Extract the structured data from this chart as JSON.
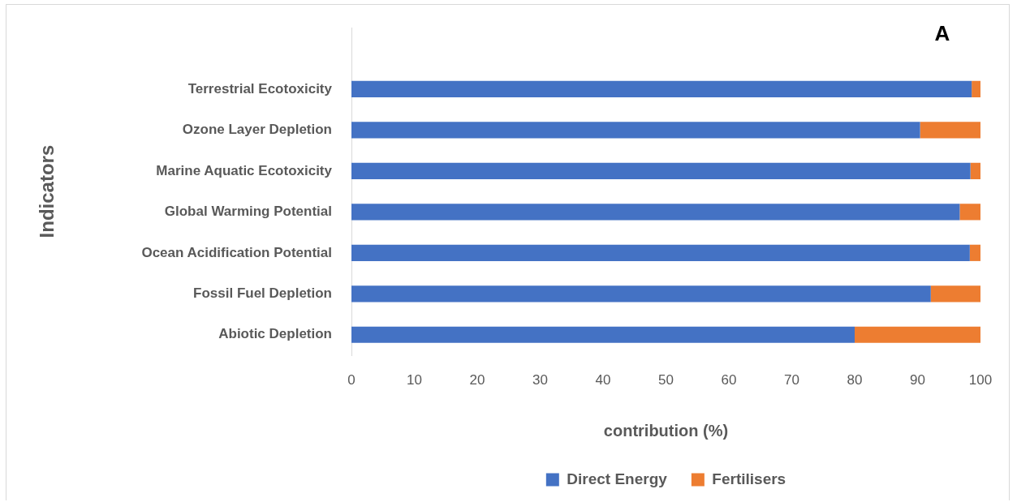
{
  "chart_data": {
    "type": "bar",
    "orientation": "horizontal",
    "stacked": true,
    "categories": [
      null,
      "Terrestrial Ecotoxicity",
      "Ozone Layer Depletion",
      "Marine Aquatic Ecotoxicity",
      "Global Warming Potential",
      "Ocean Acidification Potential",
      "Fossil Fuel Depletion",
      "Abiotic Depletion"
    ],
    "series": [
      {
        "name": "Direct Energy",
        "color": "#4472c4",
        "values": [
          null,
          98.6,
          90.4,
          98.4,
          96.7,
          98.3,
          92.1,
          80
        ]
      },
      {
        "name": "Fertilisers",
        "color": "#ed7d31",
        "values": [
          null,
          1.4,
          9.6,
          1.6,
          3.3,
          1.7,
          7.9,
          20
        ]
      }
    ],
    "xlabel": "contribution (%)",
    "ylabel": "Indicators",
    "xlim": [
      0,
      100
    ],
    "xticks": [
      0,
      10,
      20,
      30,
      40,
      50,
      60,
      70,
      80,
      90,
      100
    ],
    "legend": "bottom",
    "annotations": [
      "A"
    ]
  }
}
